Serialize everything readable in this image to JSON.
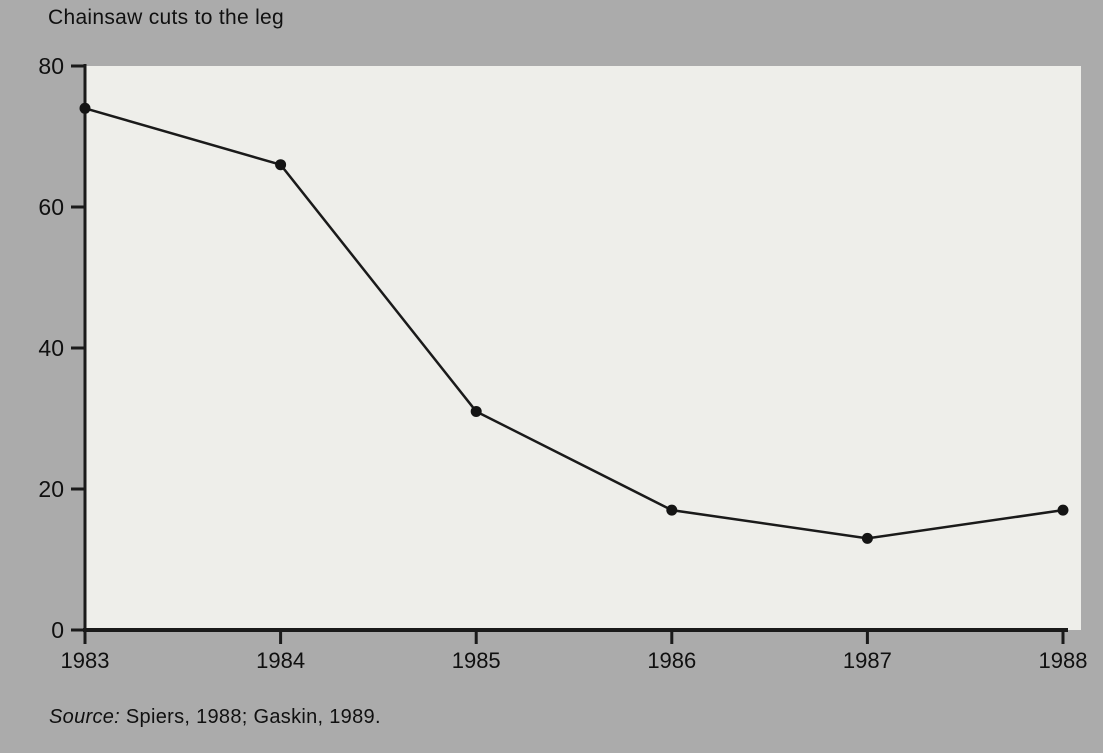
{
  "chart_data": {
    "type": "line",
    "title": "Chainsaw cuts to the leg",
    "categories": [
      "1983",
      "1984",
      "1985",
      "1986",
      "1987",
      "1988"
    ],
    "values": [
      74,
      66,
      31,
      17,
      13,
      17
    ],
    "xlabel": "",
    "ylabel": "",
    "ylim": [
      0,
      80
    ],
    "yticks": [
      0,
      20,
      40,
      60,
      80
    ],
    "grid": false,
    "legend": "none",
    "marker": "circle"
  },
  "source": {
    "label": "Source:",
    "text": " Spiers, 1988; Gaskin, 1989."
  },
  "colors": {
    "page_bg": "#ababab",
    "plot_bg": "#eeeeea",
    "line": "#1a1a1a",
    "marker": "#141414",
    "text": "#101010"
  }
}
